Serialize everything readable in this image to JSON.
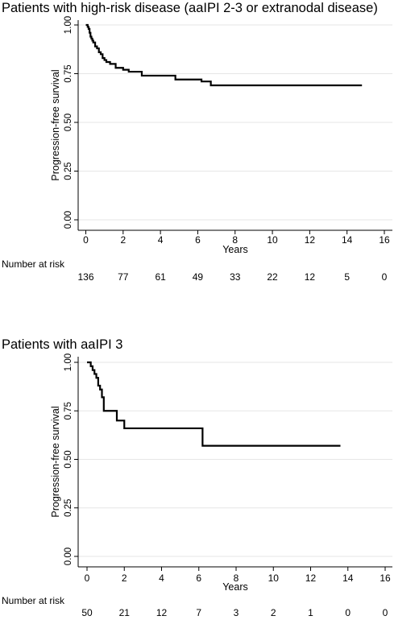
{
  "chart_data": [
    {
      "type": "line",
      "title": "Patients with high-risk disease (aaIPI 2-3 or extranodal disease)",
      "xlabel": "Years",
      "ylabel": "Progression-free survival",
      "xlim": [
        0,
        16
      ],
      "ylim": [
        0,
        1
      ],
      "xticks": [
        "0",
        "2",
        "4",
        "6",
        "8",
        "10",
        "12",
        "14",
        "16"
      ],
      "yticks": [
        "0.00",
        "0.25",
        "0.50",
        "0.75",
        "1.00"
      ],
      "grid": "horizontal",
      "series": [
        {
          "x": [
            0,
            0.1,
            0.15,
            0.2,
            0.25,
            0.3,
            0.35,
            0.4,
            0.5,
            0.6,
            0.7,
            0.8,
            0.9,
            1.0,
            1.1,
            1.3,
            1.6,
            2.0,
            2.3,
            3.0,
            4.8,
            6.2,
            6.7,
            14.8
          ],
          "y": [
            1.0,
            0.99,
            0.98,
            0.96,
            0.94,
            0.93,
            0.92,
            0.91,
            0.89,
            0.88,
            0.86,
            0.85,
            0.83,
            0.82,
            0.81,
            0.8,
            0.78,
            0.77,
            0.76,
            0.74,
            0.72,
            0.71,
            0.69,
            0.69
          ]
        }
      ],
      "risk_table": {
        "label": "Number at risk",
        "values": [
          "136",
          "77",
          "61",
          "49",
          "33",
          "22",
          "12",
          "5",
          "0"
        ]
      }
    },
    {
      "type": "line",
      "title": "Patients with aaIPI 3",
      "xlabel": "Years",
      "ylabel": "Progression-free survival",
      "xlim": [
        0,
        16
      ],
      "ylim": [
        0,
        1
      ],
      "xticks": [
        "0",
        "2",
        "4",
        "6",
        "8",
        "10",
        "12",
        "14",
        "16"
      ],
      "yticks": [
        "0.00",
        "0.25",
        "0.50",
        "0.75",
        "1.00"
      ],
      "grid": "horizontal",
      "series": [
        {
          "x": [
            0,
            0.2,
            0.3,
            0.4,
            0.5,
            0.6,
            0.7,
            0.8,
            0.9,
            1.6,
            2.0,
            6.2,
            13.6
          ],
          "y": [
            1.0,
            0.98,
            0.96,
            0.94,
            0.92,
            0.88,
            0.86,
            0.82,
            0.75,
            0.7,
            0.66,
            0.57,
            0.57
          ]
        }
      ],
      "risk_table": {
        "label": "Number at risk",
        "values": [
          "50",
          "21",
          "12",
          "7",
          "3",
          "2",
          "1",
          "0",
          "0"
        ]
      }
    }
  ]
}
